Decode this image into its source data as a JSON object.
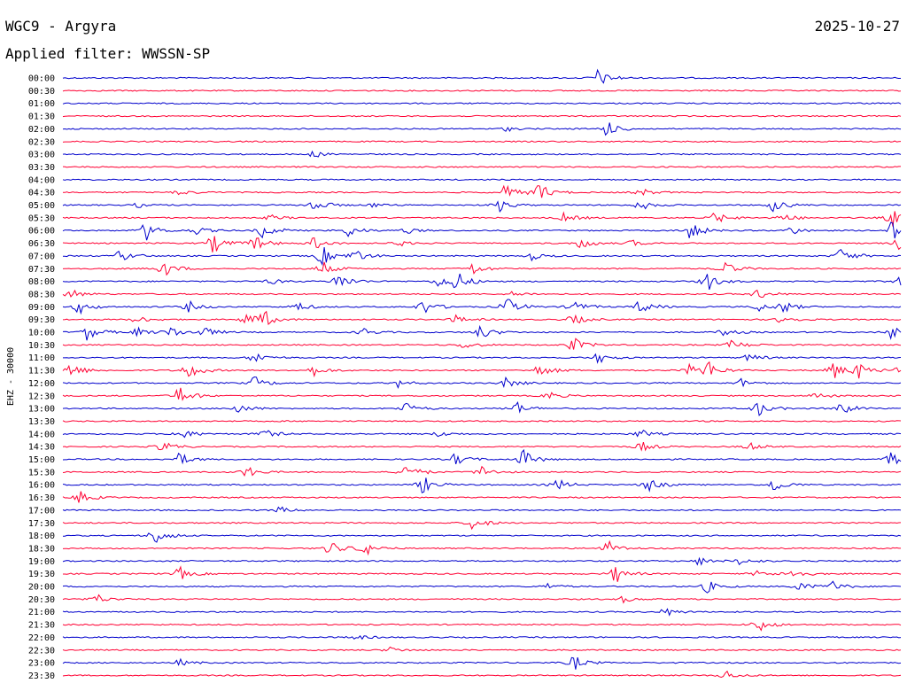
{
  "header": {
    "station": "WGC9 - Argyra",
    "date": "2025-10-27",
    "filter": "Applied filter: WWSSN-SP"
  },
  "chart_data": {
    "type": "helicorder",
    "ylabel": "EHZ - 30000",
    "colors": [
      "#0000cc",
      "#ff0033"
    ],
    "rows": [
      {
        "time": "00:00",
        "events": [
          [
            0.64,
            9
          ]
        ]
      },
      {
        "time": "00:30",
        "events": []
      },
      {
        "time": "01:00",
        "events": []
      },
      {
        "time": "01:30",
        "events": []
      },
      {
        "time": "02:00",
        "events": [
          [
            0.65,
            8
          ],
          [
            0.53,
            2
          ]
        ]
      },
      {
        "time": "02:30",
        "events": []
      },
      {
        "time": "03:00",
        "events": [
          [
            0.3,
            3
          ]
        ]
      },
      {
        "time": "03:30",
        "events": []
      },
      {
        "time": "04:00",
        "events": []
      },
      {
        "time": "04:30",
        "events": [
          [
            0.53,
            8
          ],
          [
            0.57,
            9
          ],
          [
            0.14,
            3
          ],
          [
            0.69,
            4
          ]
        ]
      },
      {
        "time": "05:00",
        "events": [
          [
            0.3,
            7
          ],
          [
            0.52,
            6
          ],
          [
            0.69,
            5
          ],
          [
            0.85,
            7
          ],
          [
            0.09,
            2
          ],
          [
            0.37,
            2
          ]
        ]
      },
      {
        "time": "05:30",
        "events": [
          [
            0.25,
            3
          ],
          [
            0.6,
            5
          ],
          [
            0.78,
            6
          ],
          [
            0.86,
            5
          ],
          [
            0.99,
            9
          ]
        ]
      },
      {
        "time": "06:00",
        "events": [
          [
            0.1,
            9
          ],
          [
            0.16,
            4
          ],
          [
            0.24,
            8
          ],
          [
            0.34,
            6
          ],
          [
            0.41,
            3
          ],
          [
            0.75,
            9
          ],
          [
            0.87,
            4
          ],
          [
            0.99,
            9
          ]
        ]
      },
      {
        "time": "06:30",
        "events": [
          [
            0.18,
            9
          ],
          [
            0.23,
            7
          ],
          [
            0.3,
            6
          ],
          [
            0.4,
            3
          ],
          [
            0.62,
            6
          ],
          [
            0.68,
            3
          ],
          [
            1.0,
            8
          ]
        ]
      },
      {
        "time": "07:00",
        "events": [
          [
            0.07,
            6
          ],
          [
            0.31,
            9
          ],
          [
            0.35,
            7
          ],
          [
            0.56,
            4
          ],
          [
            0.93,
            8
          ]
        ]
      },
      {
        "time": "07:30",
        "events": [
          [
            0.12,
            8
          ],
          [
            0.31,
            7
          ],
          [
            0.49,
            6
          ],
          [
            0.79,
            8
          ]
        ]
      },
      {
        "time": "08:00",
        "events": [
          [
            0.33,
            9
          ],
          [
            0.45,
            6
          ],
          [
            0.47,
            9
          ],
          [
            0.77,
            9
          ],
          [
            1.0,
            6
          ],
          [
            0.25,
            3
          ]
        ]
      },
      {
        "time": "08:30",
        "events": [
          [
            0.01,
            5
          ],
          [
            0.54,
            3
          ],
          [
            0.83,
            5
          ]
        ]
      },
      {
        "time": "09:00",
        "events": [
          [
            0.02,
            6
          ],
          [
            0.15,
            5
          ],
          [
            0.28,
            5
          ],
          [
            0.43,
            7
          ],
          [
            0.53,
            9
          ],
          [
            0.61,
            7
          ],
          [
            0.69,
            7
          ],
          [
            0.83,
            4
          ],
          [
            0.86,
            6
          ]
        ]
      },
      {
        "time": "09:30",
        "events": [
          [
            0.09,
            4
          ],
          [
            0.22,
            7
          ],
          [
            0.24,
            7
          ],
          [
            0.47,
            4
          ],
          [
            0.61,
            6
          ],
          [
            0.86,
            5
          ]
        ]
      },
      {
        "time": "10:00",
        "events": [
          [
            0.03,
            8
          ],
          [
            0.09,
            4
          ],
          [
            0.13,
            6
          ],
          [
            0.17,
            5
          ],
          [
            0.36,
            4
          ],
          [
            0.5,
            7
          ],
          [
            0.79,
            4
          ],
          [
            0.99,
            6
          ]
        ]
      },
      {
        "time": "10:30",
        "events": [
          [
            0.48,
            4
          ],
          [
            0.61,
            7
          ],
          [
            0.8,
            6
          ]
        ]
      },
      {
        "time": "11:00",
        "events": [
          [
            0.23,
            6
          ],
          [
            0.64,
            5
          ],
          [
            0.82,
            4
          ]
        ]
      },
      {
        "time": "11:30",
        "events": [
          [
            0.01,
            8
          ],
          [
            0.15,
            9
          ],
          [
            0.3,
            5
          ],
          [
            0.57,
            7
          ],
          [
            0.75,
            6
          ],
          [
            0.77,
            8
          ],
          [
            0.92,
            9
          ],
          [
            0.95,
            7
          ],
          [
            1.0,
            5
          ]
        ]
      },
      {
        "time": "12:00",
        "events": [
          [
            0.23,
            6
          ],
          [
            0.4,
            4
          ],
          [
            0.53,
            5
          ],
          [
            0.81,
            4
          ]
        ]
      },
      {
        "time": "12:30",
        "events": [
          [
            0.14,
            9
          ],
          [
            0.58,
            4
          ],
          [
            0.9,
            4
          ]
        ]
      },
      {
        "time": "13:00",
        "events": [
          [
            0.21,
            5
          ],
          [
            0.41,
            6
          ],
          [
            0.54,
            7
          ],
          [
            0.83,
            7
          ],
          [
            0.93,
            7
          ]
        ]
      },
      {
        "time": "13:30",
        "events": []
      },
      {
        "time": "14:00",
        "events": [
          [
            0.14,
            7
          ],
          [
            0.24,
            5
          ],
          [
            0.45,
            3
          ],
          [
            0.69,
            4
          ]
        ]
      },
      {
        "time": "14:30",
        "events": [
          [
            0.12,
            6
          ],
          [
            0.69,
            5
          ],
          [
            0.82,
            4
          ]
        ]
      },
      {
        "time": "15:00",
        "events": [
          [
            0.14,
            6
          ],
          [
            0.47,
            6
          ],
          [
            0.55,
            9
          ],
          [
            0.99,
            7
          ]
        ]
      },
      {
        "time": "15:30",
        "events": [
          [
            0.22,
            6
          ],
          [
            0.41,
            9
          ],
          [
            0.5,
            6
          ]
        ]
      },
      {
        "time": "16:00",
        "events": [
          [
            0.43,
            8
          ],
          [
            0.59,
            6
          ],
          [
            0.7,
            7
          ],
          [
            0.85,
            7
          ]
        ]
      },
      {
        "time": "16:30",
        "events": [
          [
            0.02,
            6
          ]
        ]
      },
      {
        "time": "17:00",
        "events": [
          [
            0.26,
            3
          ]
        ]
      },
      {
        "time": "17:30",
        "events": [
          [
            0.49,
            7
          ]
        ]
      },
      {
        "time": "18:00",
        "events": [
          [
            0.11,
            9
          ]
        ]
      },
      {
        "time": "18:30",
        "events": [
          [
            0.32,
            7
          ],
          [
            0.36,
            7
          ],
          [
            0.65,
            7
          ]
        ]
      },
      {
        "time": "19:00",
        "events": [
          [
            0.76,
            4
          ],
          [
            0.81,
            4
          ]
        ]
      },
      {
        "time": "19:30",
        "events": [
          [
            0.14,
            6
          ],
          [
            0.66,
            8
          ],
          [
            0.87,
            6
          ],
          [
            0.83,
            3
          ]
        ]
      },
      {
        "time": "20:00",
        "events": [
          [
            0.77,
            6
          ],
          [
            0.88,
            5
          ],
          [
            0.92,
            5
          ],
          [
            0.58,
            3
          ]
        ]
      },
      {
        "time": "20:30",
        "events": [
          [
            0.04,
            5
          ],
          [
            0.67,
            3
          ]
        ]
      },
      {
        "time": "21:00",
        "events": [
          [
            0.72,
            4
          ]
        ]
      },
      {
        "time": "21:30",
        "events": [
          [
            0.83,
            7
          ]
        ]
      },
      {
        "time": "22:00",
        "events": [
          [
            0.35,
            3
          ]
        ]
      },
      {
        "time": "22:30",
        "events": [
          [
            0.39,
            3
          ]
        ]
      },
      {
        "time": "23:00",
        "events": [
          [
            0.61,
            7
          ],
          [
            0.14,
            3
          ]
        ]
      },
      {
        "time": "23:30",
        "events": [
          [
            0.79,
            5
          ]
        ]
      }
    ]
  }
}
